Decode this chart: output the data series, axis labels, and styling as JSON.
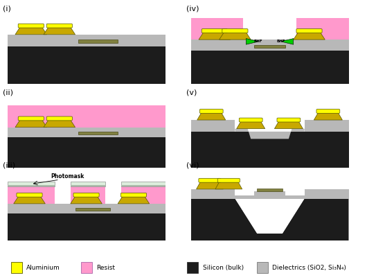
{
  "colors": {
    "silicon": "#1c1c1c",
    "dielectric": "#b8b8b8",
    "resist": "#ff99cc",
    "aluminium_yellow": "#ffff00",
    "aluminium_dark": "#c8a800",
    "sacrificial": "#808040",
    "photomask_glass": "#ddeedd",
    "photomask_stripe": "#aabbaa",
    "background": "#ffffff",
    "green_bhf": "#00cc00",
    "black": "#000000",
    "white": "#ffffff"
  },
  "legend": {
    "aluminium_label": "Aluminium",
    "resist_label": "Resist",
    "silicon_label": "Silicon (bulk)",
    "dielectric_label": "Dielectrics (SiO2, Si₃N₄)"
  }
}
